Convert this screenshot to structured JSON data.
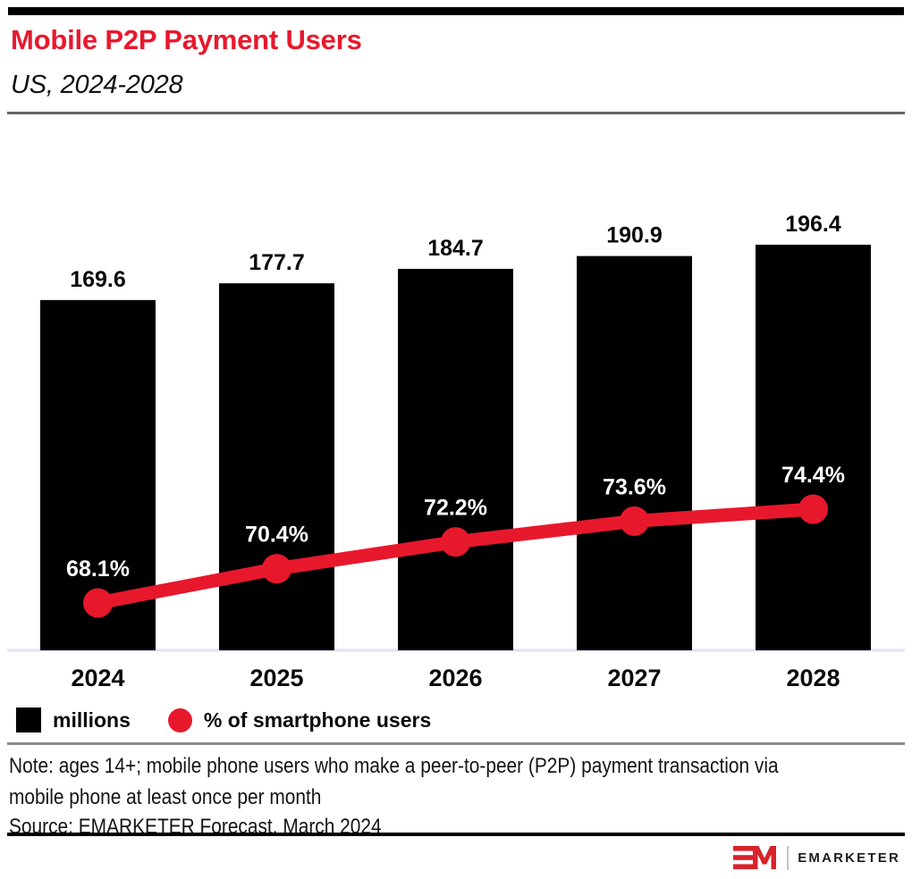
{
  "header": {
    "title": "Mobile P2P Payment Users",
    "subtitle": "US, 2024-2028"
  },
  "chart_data": {
    "type": "combo",
    "title": "Mobile P2P Payment Users",
    "subtitle": "US, 2024-2028",
    "categories": [
      "2024",
      "2025",
      "2026",
      "2027",
      "2028"
    ],
    "series": [
      {
        "name": "Mobile P2P payment users",
        "legend_label": "millions",
        "type": "bar",
        "unit": "millions",
        "color": "#000000",
        "values": [
          169.6,
          177.7,
          184.7,
          190.9,
          196.4
        ],
        "labels": [
          "169.6",
          "177.7",
          "184.7",
          "190.9",
          "196.4"
        ]
      },
      {
        "name": "% of smartphone users",
        "legend_label": "% of smartphone users",
        "type": "line",
        "unit": "percent",
        "color": "#e8182c",
        "values": [
          68.1,
          70.4,
          72.2,
          73.6,
          74.4
        ],
        "labels": [
          "68.1%",
          "70.4%",
          "72.2%",
          "73.6%",
          "74.4%"
        ]
      }
    ],
    "xlabel": "",
    "ylabel": "",
    "bar_axis": {
      "min": 0,
      "gridlines": false,
      "axis_labels_shown": false
    },
    "line_axis": {
      "zero_based": false,
      "axis_labels_shown": false
    },
    "annotations": "bar values labeled above bars; percentages labeled in white above line markers",
    "legend_position": "bottom-left"
  },
  "legend": {
    "items": [
      {
        "label": "millions",
        "swatch": "square",
        "color": "#000000"
      },
      {
        "label": "% of smartphone users",
        "swatch": "circle",
        "color": "#e8182c"
      }
    ]
  },
  "footer": {
    "note_lines": [
      "Note: ages 14+; mobile phone users who make a peer-to-peer (P2P) payment transaction via",
      "mobile phone at least once per month"
    ],
    "source": "Source: EMARKETER Forecast, March 2024"
  },
  "branding": {
    "logo_mark": "EM",
    "logo_text": "EMARKETER"
  },
  "colors": {
    "accent_red": "#e8182c",
    "bar_black": "#000000",
    "logo_red": "#d8232a",
    "baseline": "#dfe3f1"
  }
}
